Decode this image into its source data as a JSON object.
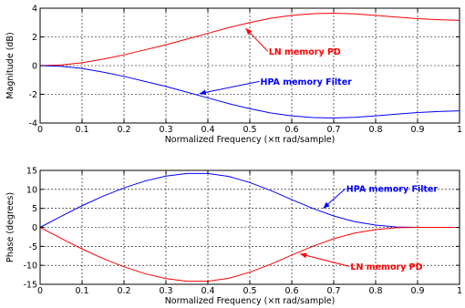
{
  "chart_data": [
    {
      "type": "line",
      "xlabel": "Normalized Frequency  (×π rad/sample)",
      "ylabel": "Magnitude (dB)",
      "xlim": [
        0,
        1
      ],
      "ylim": [
        -4,
        4
      ],
      "xticks": [
        0,
        0.1,
        0.2,
        0.3,
        0.4,
        0.5,
        0.6,
        0.7,
        0.8,
        0.9,
        1
      ],
      "yticks": [
        -4,
        -2,
        0,
        2,
        4
      ],
      "grid": true,
      "series": [
        {
          "name": "LN memory PD",
          "color": "#ff0000",
          "x": [
            0,
            0.05,
            0.1,
            0.15,
            0.2,
            0.25,
            0.3,
            0.35,
            0.4,
            0.45,
            0.5,
            0.55,
            0.6,
            0.65,
            0.7,
            0.75,
            0.8,
            0.85,
            0.9,
            0.95,
            1.0
          ],
          "y": [
            0,
            0.05,
            0.2,
            0.45,
            0.75,
            1.1,
            1.45,
            1.85,
            2.25,
            2.65,
            3.0,
            3.3,
            3.5,
            3.62,
            3.65,
            3.6,
            3.5,
            3.38,
            3.27,
            3.2,
            3.15
          ]
        },
        {
          "name": "HPA memory Filter",
          "color": "#0000ff",
          "x": [
            0,
            0.05,
            0.1,
            0.15,
            0.2,
            0.25,
            0.3,
            0.35,
            0.4,
            0.45,
            0.5,
            0.55,
            0.6,
            0.65,
            0.7,
            0.75,
            0.8,
            0.85,
            0.9,
            0.95,
            1.0
          ],
          "y": [
            0,
            -0.05,
            -0.2,
            -0.45,
            -0.75,
            -1.1,
            -1.45,
            -1.85,
            -2.25,
            -2.65,
            -3.0,
            -3.3,
            -3.5,
            -3.62,
            -3.65,
            -3.6,
            -3.5,
            -3.38,
            -3.27,
            -3.2,
            -3.15
          ]
        }
      ],
      "annotations": [
        {
          "text": "LN memory PD",
          "color": "#ff0000",
          "arrow_to": [
            0.49,
            2.6
          ],
          "text_at": [
            0.545,
            1.0
          ]
        },
        {
          "text": "HPA memory Filter",
          "color": "#0000ff",
          "arrow_to": [
            0.38,
            -1.95
          ],
          "text_at": [
            0.525,
            -1.1
          ]
        }
      ]
    },
    {
      "type": "line",
      "xlabel": "Normalized Frequency  (×π rad/sample)",
      "ylabel": "Phase (degrees)",
      "xlim": [
        0,
        1
      ],
      "ylim": [
        -15,
        15
      ],
      "xticks": [
        0,
        0.1,
        0.2,
        0.3,
        0.4,
        0.5,
        0.6,
        0.7,
        0.8,
        0.9,
        1
      ],
      "yticks": [
        -15,
        -10,
        -5,
        0,
        5,
        10,
        15
      ],
      "grid": true,
      "series": [
        {
          "name": "HPA memory Filter",
          "color": "#0000ff",
          "x": [
            0,
            0.05,
            0.1,
            0.15,
            0.2,
            0.25,
            0.3,
            0.35,
            0.4,
            0.45,
            0.5,
            0.55,
            0.6,
            0.65,
            0.7,
            0.75,
            0.8,
            0.85,
            0.9,
            0.95,
            1.0
          ],
          "y": [
            0,
            2.9,
            5.7,
            8.2,
            10.4,
            12.2,
            13.5,
            14.2,
            14.2,
            13.4,
            11.8,
            9.7,
            7.3,
            5.0,
            3.0,
            1.5,
            0.6,
            0.1,
            0,
            0,
            0
          ]
        },
        {
          "name": "LN memory PD",
          "color": "#ff0000",
          "x": [
            0,
            0.05,
            0.1,
            0.15,
            0.2,
            0.25,
            0.3,
            0.35,
            0.4,
            0.45,
            0.5,
            0.55,
            0.6,
            0.65,
            0.7,
            0.75,
            0.8,
            0.85,
            0.9,
            0.95,
            1.0
          ],
          "y": [
            0,
            -2.9,
            -5.7,
            -8.2,
            -10.4,
            -12.2,
            -13.5,
            -14.2,
            -14.2,
            -13.4,
            -11.8,
            -9.7,
            -7.3,
            -5.0,
            -3.0,
            -1.5,
            -0.6,
            -0.1,
            0,
            0,
            0
          ]
        }
      ],
      "annotations": [
        {
          "text": "HPA memory Filter",
          "color": "#0000ff",
          "arrow_to": [
            0.675,
            5.0
          ],
          "text_at": [
            0.73,
            10.2
          ]
        },
        {
          "text": "LN memory PD",
          "color": "#ff0000",
          "arrow_to": [
            0.62,
            -7.0
          ],
          "text_at": [
            0.74,
            -10.3
          ]
        }
      ]
    }
  ]
}
